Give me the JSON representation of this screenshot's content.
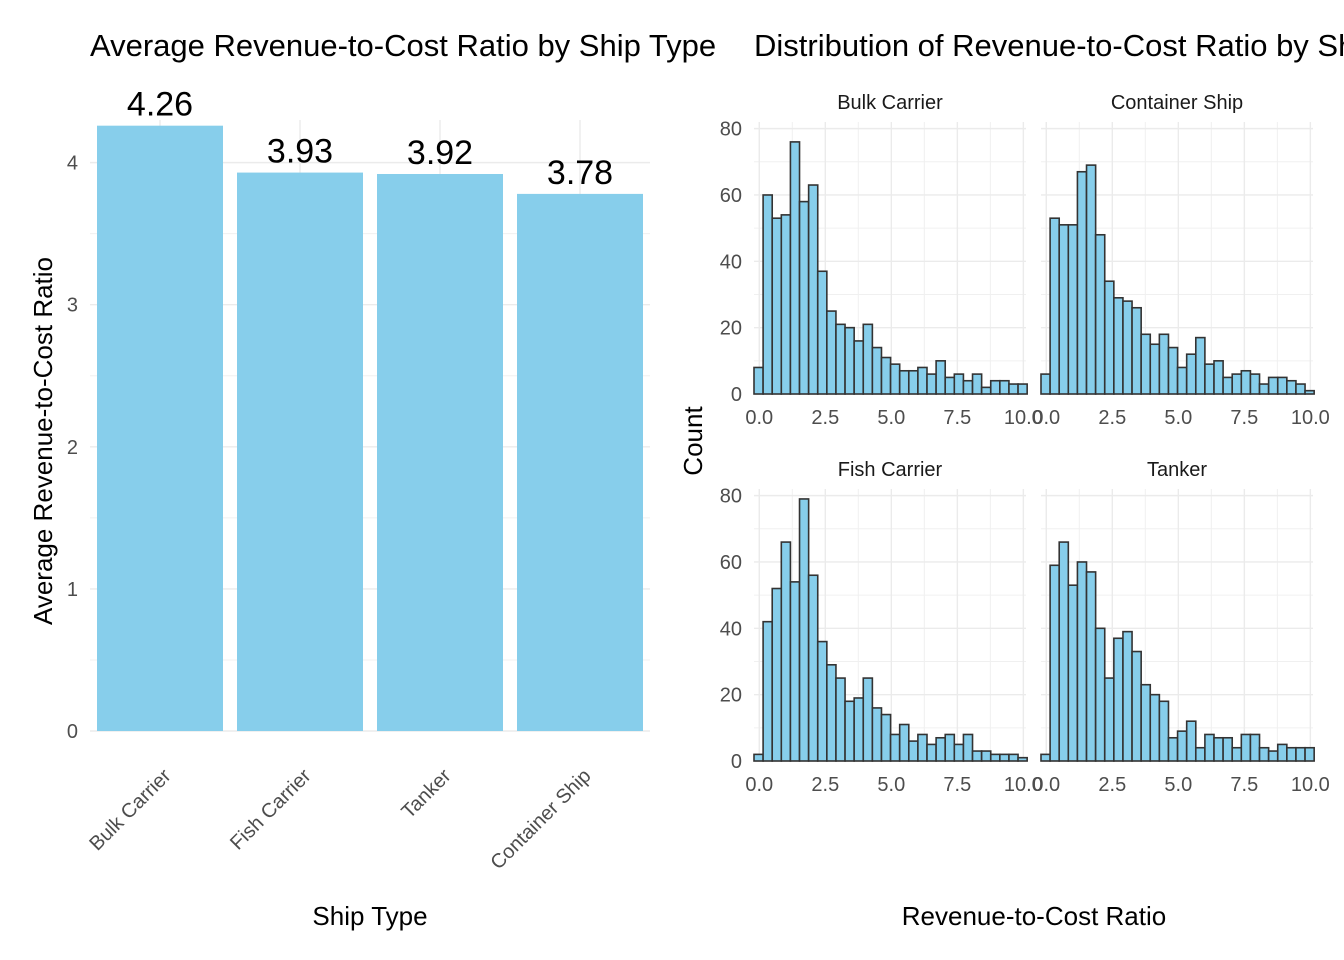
{
  "chart_data": [
    {
      "type": "bar",
      "title": "Average Revenue-to-Cost Ratio by Ship Type",
      "xlabel": "Ship Type",
      "ylabel": "Average Revenue-to-Cost Ratio",
      "categories": [
        "Bulk Carrier",
        "Fish Carrier",
        "Tanker",
        "Container Ship"
      ],
      "values": [
        4.26,
        3.93,
        3.92,
        3.78
      ],
      "data_labels": [
        "4.26",
        "3.93",
        "3.92",
        "3.78"
      ],
      "ylim": [
        0,
        4.3
      ],
      "yticks": [
        0,
        1,
        2,
        3,
        4
      ],
      "grid": true,
      "bar_color": "#87CEEB"
    },
    {
      "type": "bar",
      "title": "Distribution of Revenue-to-Cost Ratio by Ship Type",
      "xlabel": "Revenue-to-Cost Ratio",
      "ylabel": "Count",
      "facets": [
        {
          "name": "Bulk Carrier",
          "counts": [
            8,
            60,
            53,
            54,
            76,
            58,
            63,
            37,
            25,
            21,
            20,
            16,
            21,
            14,
            11,
            9,
            7,
            7,
            8,
            6,
            10,
            5,
            6,
            4,
            6,
            2,
            4,
            4,
            3,
            3
          ]
        },
        {
          "name": "Container Ship",
          "counts": [
            6,
            53,
            51,
            51,
            67,
            69,
            48,
            34,
            29,
            28,
            26,
            18,
            15,
            18,
            14,
            8,
            12,
            17,
            9,
            10,
            5,
            6,
            7,
            6,
            3,
            5,
            5,
            4,
            3,
            1
          ]
        },
        {
          "name": "Fish Carrier",
          "counts": [
            2,
            42,
            52,
            66,
            54,
            79,
            56,
            36,
            29,
            25,
            18,
            19,
            25,
            16,
            14,
            8,
            11,
            6,
            8,
            5,
            7,
            8,
            5,
            8,
            3,
            3,
            2,
            2,
            2,
            1
          ]
        },
        {
          "name": "Tanker",
          "counts": [
            2,
            59,
            66,
            53,
            60,
            57,
            40,
            25,
            37,
            39,
            33,
            23,
            20,
            18,
            7,
            9,
            12,
            4,
            8,
            7,
            7,
            4,
            8,
            8,
            4,
            3,
            5,
            4,
            4,
            4
          ]
        }
      ],
      "bin_start": -0.2,
      "bin_width": 0.3448,
      "x_ticks": [
        "0.0",
        "2.5",
        "5.0",
        "7.5",
        "10.0"
      ],
      "x_tick_values": [
        0,
        2.5,
        5,
        7.5,
        10
      ],
      "xlim": [
        -0.2,
        10.1
      ],
      "y_ticks": [
        0,
        20,
        40,
        60,
        80
      ],
      "ylim": [
        0,
        82
      ],
      "grid": true,
      "bar_fill": "#87CEEB",
      "bar_edge": "#333333"
    }
  ]
}
